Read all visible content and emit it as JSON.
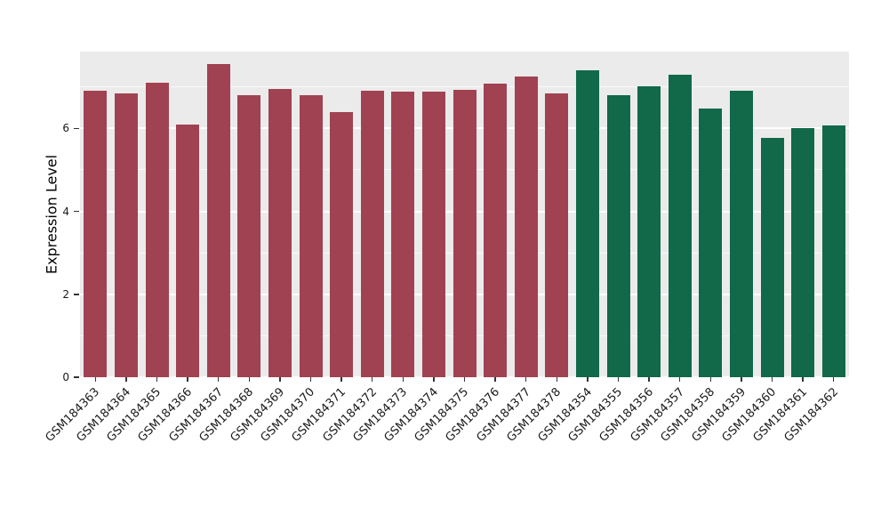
{
  "figure": {
    "ylabel": "Expression Level"
  },
  "chart_data": {
    "type": "bar",
    "title": "",
    "xlabel": "",
    "ylabel": "Expression Level",
    "ylim": [
      0,
      7.85
    ],
    "yticks": [
      0,
      2,
      4,
      6
    ],
    "minor_yticks": [
      1,
      3,
      5,
      7
    ],
    "grid": true,
    "legend": "none",
    "panel_bg": "#EBEBEB",
    "categories": [
      "GSM184363",
      "GSM184364",
      "GSM184365",
      "GSM184366",
      "GSM184367",
      "GSM184368",
      "GSM184369",
      "GSM184370",
      "GSM184371",
      "GSM184372",
      "GSM184373",
      "GSM184374",
      "GSM184375",
      "GSM184376",
      "GSM184377",
      "GSM184378",
      "GSM184354",
      "GSM184355",
      "GSM184356",
      "GSM184357",
      "GSM184358",
      "GSM184359",
      "GSM184360",
      "GSM184361",
      "GSM184362"
    ],
    "values": [
      6.9,
      6.85,
      7.1,
      6.1,
      7.55,
      6.8,
      6.95,
      6.8,
      6.4,
      6.9,
      6.88,
      6.88,
      6.92,
      7.08,
      7.25,
      6.85,
      7.4,
      6.8,
      7.02,
      7.3,
      6.48,
      6.9,
      5.78,
      6.0,
      6.08
    ],
    "groups": [
      "group1",
      "group1",
      "group1",
      "group1",
      "group1",
      "group1",
      "group1",
      "group1",
      "group1",
      "group1",
      "group1",
      "group1",
      "group1",
      "group1",
      "group1",
      "group1",
      "group2",
      "group2",
      "group2",
      "group2",
      "group2",
      "group2",
      "group2",
      "group2",
      "group2"
    ],
    "group_colors": {
      "group1": "#A04252",
      "group2": "#11694A"
    }
  }
}
